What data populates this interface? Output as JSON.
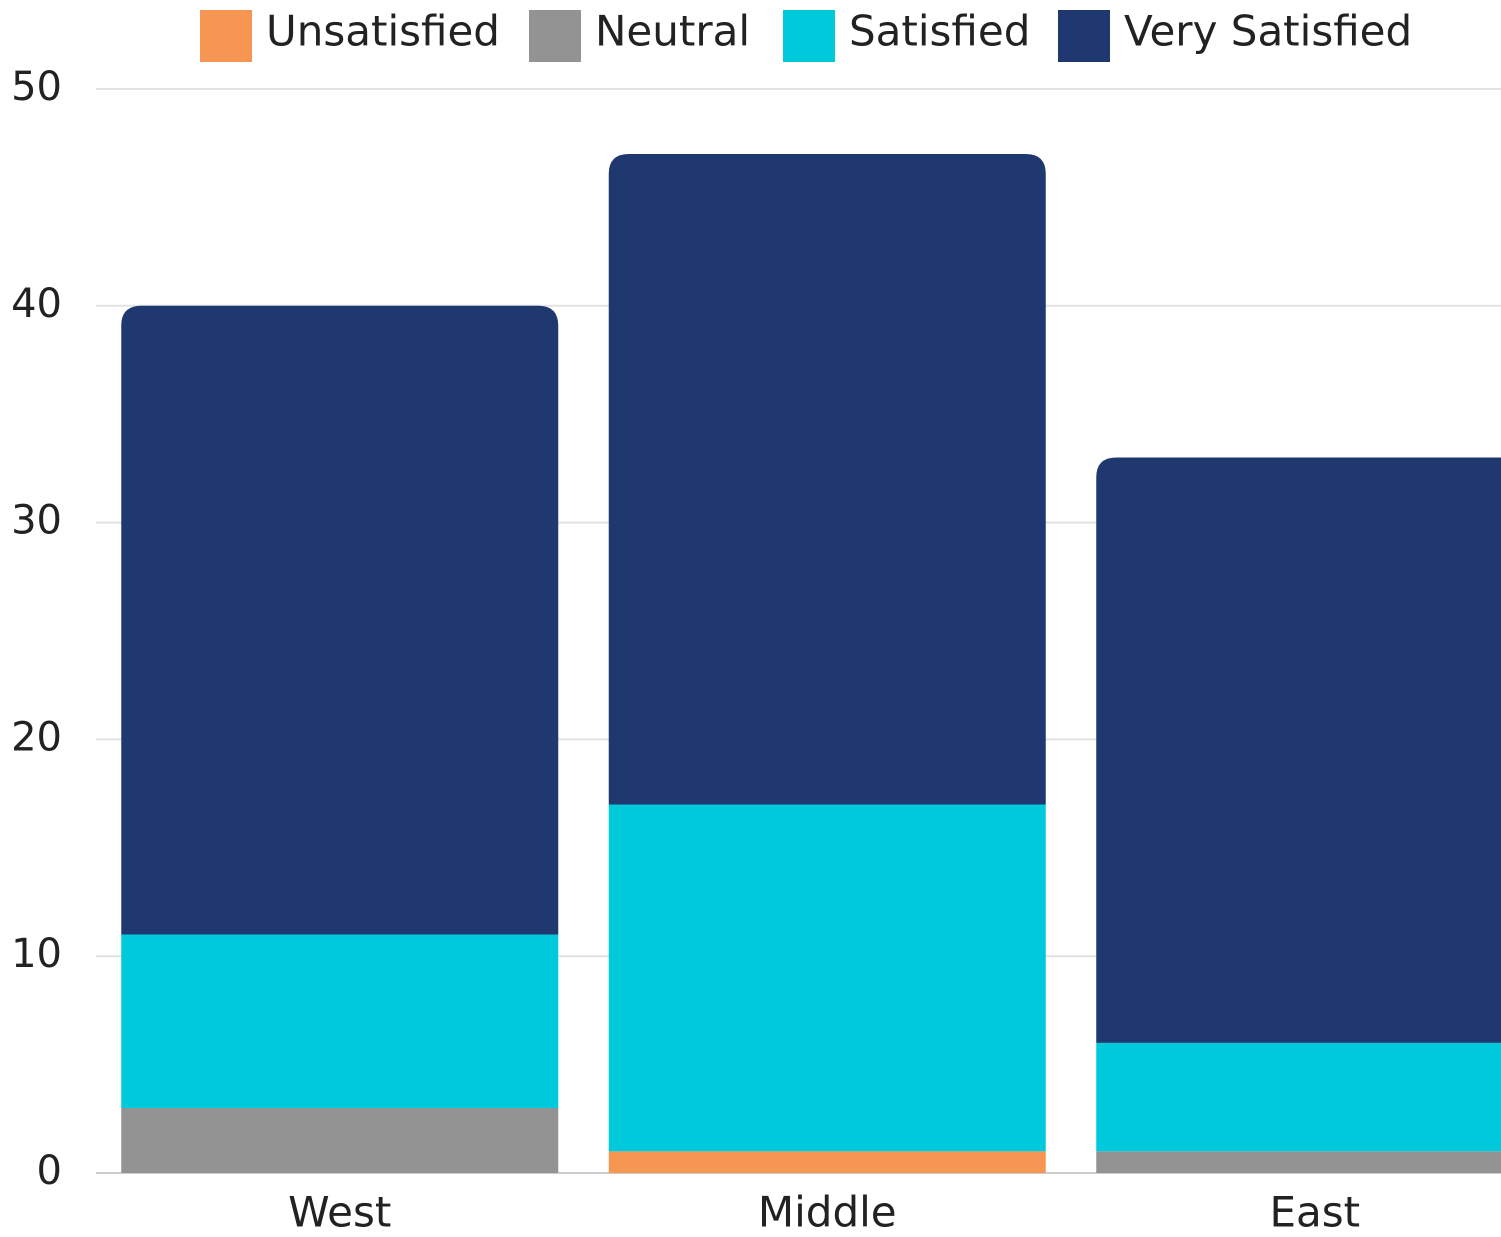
{
  "chart_data": {
    "type": "stacked_bar",
    "categories": [
      "West",
      "Middle",
      "East"
    ],
    "series": [
      {
        "name": "Unsatisfied",
        "color": "#f79552",
        "values": [
          0,
          1,
          0
        ]
      },
      {
        "name": "Neutral",
        "color": "#939393",
        "values": [
          3,
          0,
          1
        ]
      },
      {
        "name": "Satisfied",
        "color": "#00c9dc",
        "values": [
          8,
          16,
          5
        ]
      },
      {
        "name": "Very Satisfied",
        "color": "#1f386f",
        "values": [
          29,
          30,
          27
        ]
      }
    ],
    "ylim": [
      0,
      50
    ],
    "yticks": [
      0,
      10,
      20,
      30,
      40,
      50
    ],
    "grid": true,
    "legend": "top"
  }
}
